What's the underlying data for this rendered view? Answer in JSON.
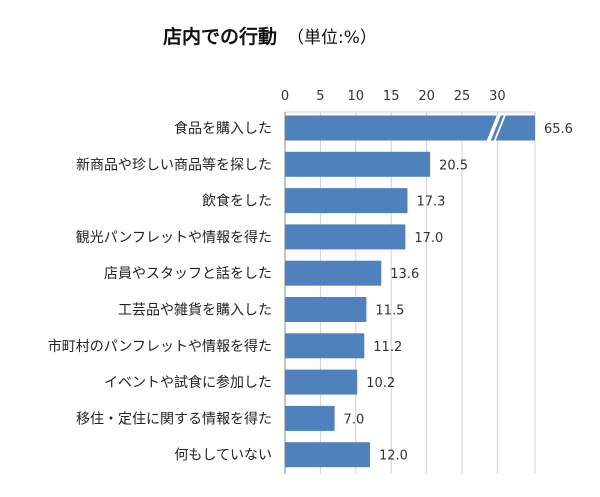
{
  "chart_data": {
    "type": "bar",
    "orientation": "horizontal",
    "title": "店内での行動",
    "unit_note": "（単位:%）",
    "categories": [
      "食品を購入した",
      "新商品や珍しい商品等を探した",
      "飲食をした",
      "観光パンフレットや情報を得た",
      "店員やスタッフと話をした",
      "工芸品や雑貨を購入した",
      "市町村のパンフレットや情報を得た",
      "イベントや試食に参加した",
      "移住・定住に関する情報を得た",
      "何もしていない"
    ],
    "values": [
      65.6,
      20.5,
      17.3,
      17.0,
      13.6,
      11.5,
      11.2,
      10.2,
      7.0,
      12.0
    ],
    "value_labels": [
      "65.6",
      "20.5",
      "17.3",
      "17.0",
      "13.6",
      "11.5",
      "11.2",
      "10.2",
      "7.0",
      "12.0"
    ],
    "axis_ticks": [
      "0",
      "5",
      "10",
      "15",
      "20",
      "25",
      "30"
    ],
    "axis_position": "top",
    "xlim": [
      0,
      35
    ],
    "axis_break": true,
    "grid": true,
    "bar_color": "#4f81bd"
  }
}
